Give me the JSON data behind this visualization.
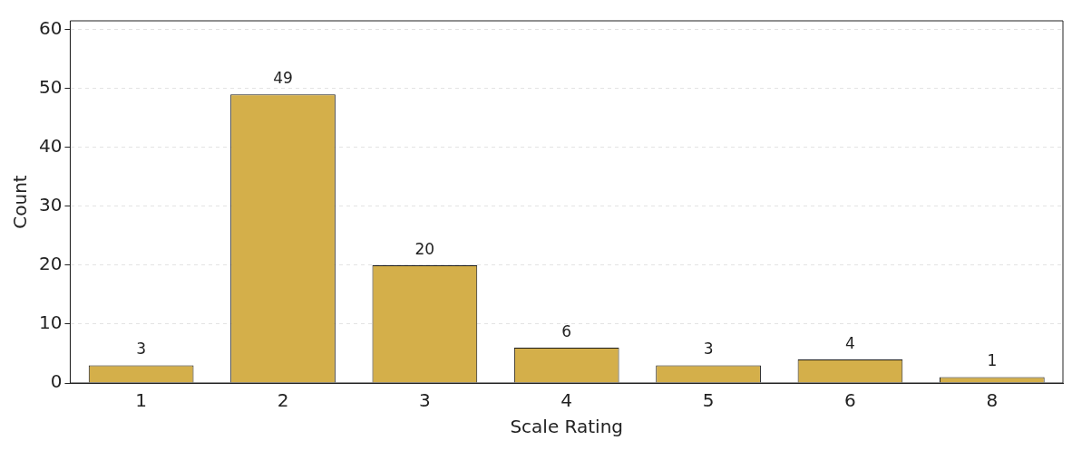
{
  "chart_data": {
    "type": "bar",
    "xlabel": "Scale Rating",
    "ylabel": "Count",
    "categories": [
      "1",
      "2",
      "3",
      "4",
      "5",
      "6",
      "8"
    ],
    "values": [
      3,
      49,
      20,
      6,
      3,
      4,
      1
    ],
    "color": "#d4af4a",
    "ylim": [
      0,
      61.5
    ],
    "yticks": [
      0,
      10,
      20,
      30,
      40,
      50,
      60
    ],
    "grid": "y",
    "data_labels": true
  }
}
